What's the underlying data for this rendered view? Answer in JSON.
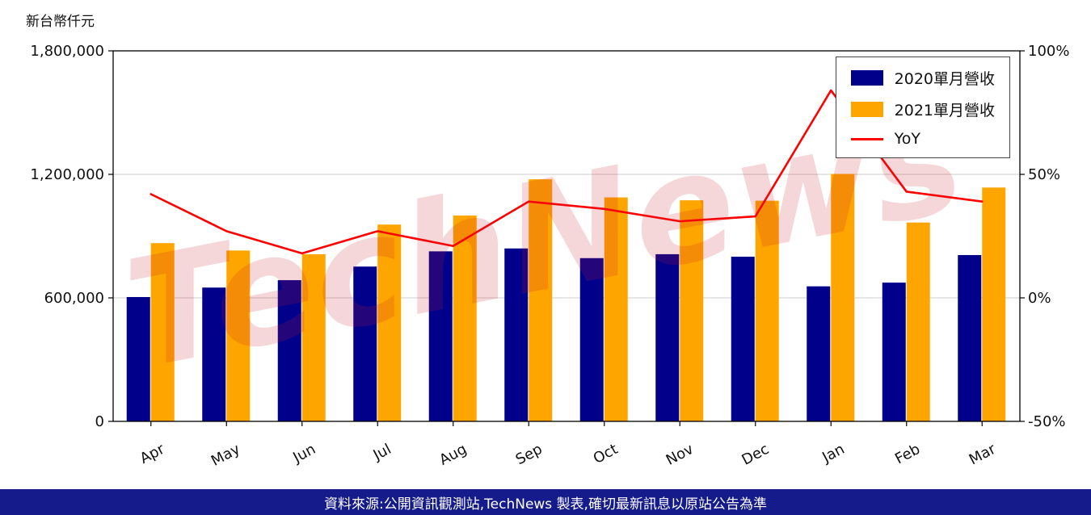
{
  "unit_label": "新台幣仟元",
  "watermark": "TechNews",
  "footer": {
    "text": "資料來源:公開資訊觀測站,TechNews 製表,確切最新訊息以原站公告為準",
    "bg": "#151b8a"
  },
  "chart_data": {
    "type": "bar",
    "title": "",
    "categories": [
      "Apr",
      "May",
      "Jun",
      "Jul",
      "Aug",
      "Sep",
      "Oct",
      "Nov",
      "Dec",
      "Jan",
      "Feb",
      "Mar"
    ],
    "series": [
      {
        "name": "2020單月營收",
        "type": "bar",
        "axis": "left",
        "color": "#00008B",
        "values": [
          604000,
          650000,
          686000,
          752000,
          826000,
          840000,
          793000,
          812000,
          800000,
          656000,
          674000,
          808000
        ]
      },
      {
        "name": "2021單月營收",
        "type": "bar",
        "axis": "left",
        "color": "#FFA500",
        "values": [
          866000,
          830000,
          812000,
          956000,
          1000000,
          1176000,
          1088000,
          1074000,
          1072000,
          1202000,
          966000,
          1136000
        ]
      },
      {
        "name": "YoY",
        "type": "line",
        "axis": "right",
        "color": "#FF0000",
        "values": [
          42,
          27,
          18,
          27,
          21,
          39,
          36,
          31,
          33,
          84,
          43,
          39
        ]
      }
    ],
    "left_axis": {
      "label": "新台幣仟元",
      "ticks": [
        0,
        600000,
        1200000,
        1800000
      ],
      "range": [
        0,
        1800000
      ]
    },
    "right_axis": {
      "ticks": [
        "-50%",
        "0%",
        "50%",
        "100%"
      ],
      "tick_values": [
        -50,
        0,
        50,
        100
      ],
      "range": [
        -50,
        100
      ]
    },
    "legend_position": "top-right",
    "grid": true,
    "gridline_color": "#cccccc"
  }
}
